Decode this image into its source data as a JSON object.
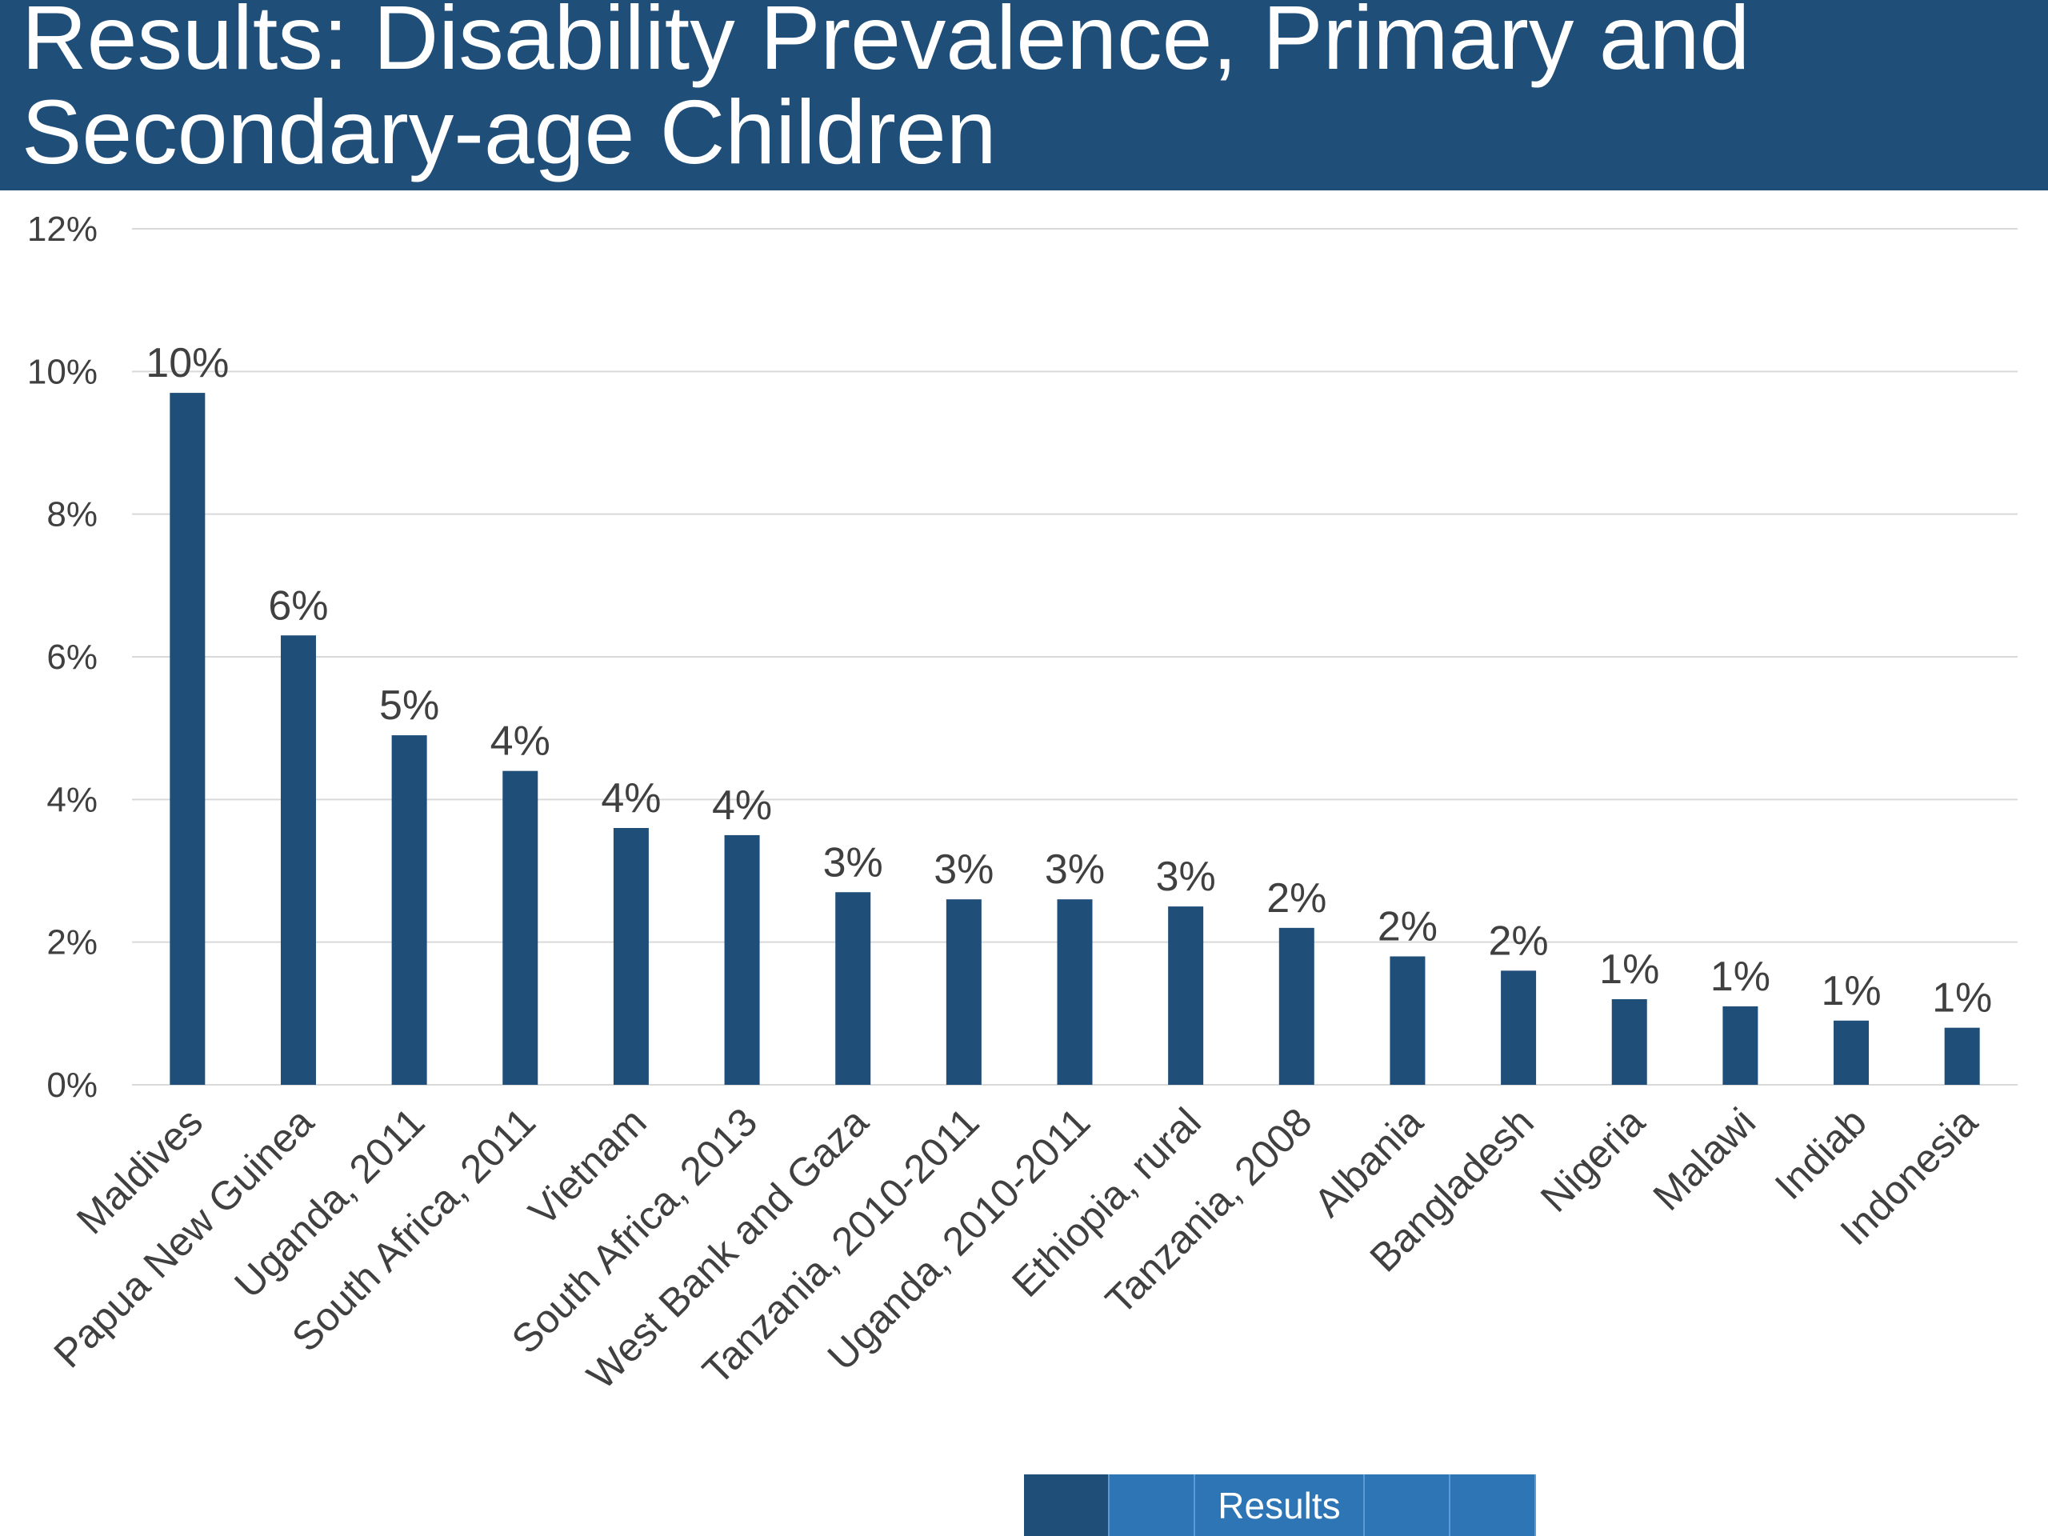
{
  "title": "Results: Disability Prevalence, Primary and Secondary-age Children",
  "footer_nav": {
    "label": "Results"
  },
  "colors": {
    "header": "#1f4e79",
    "bar": "#1f4e79",
    "nav": "#2e75b6",
    "grid": "#d9d9d9",
    "text": "#404040"
  },
  "chart_data": {
    "type": "bar",
    "categories": [
      "Maldives",
      "Papua New Guinea",
      "Uganda, 2011",
      "South Africa, 2011",
      "Vietnam",
      "South Africa, 2013",
      "West Bank and Gaza",
      "Tanzania, 2010-2011",
      "Uganda, 2010-2011",
      "Ethiopia, rural",
      "Tanzania, 2008",
      "Albania",
      "Bangladesh",
      "Nigeria",
      "Malawi",
      "Indiab",
      "Indonesia"
    ],
    "values": [
      9.7,
      6.3,
      4.9,
      4.4,
      3.6,
      3.5,
      2.7,
      2.6,
      2.6,
      2.5,
      2.2,
      1.8,
      1.6,
      1.2,
      1.1,
      0.9,
      0.8
    ],
    "data_labels": [
      "10%",
      "6%",
      "5%",
      "4%",
      "4%",
      "4%",
      "3%",
      "3%",
      "3%",
      "3%",
      "2%",
      "2%",
      "2%",
      "1%",
      "1%",
      "1%",
      "1%"
    ],
    "yticks": [
      "0%",
      "2%",
      "4%",
      "6%",
      "8%",
      "10%",
      "12%"
    ],
    "ylim": [
      0,
      12
    ],
    "grid": true,
    "legend": "none"
  }
}
